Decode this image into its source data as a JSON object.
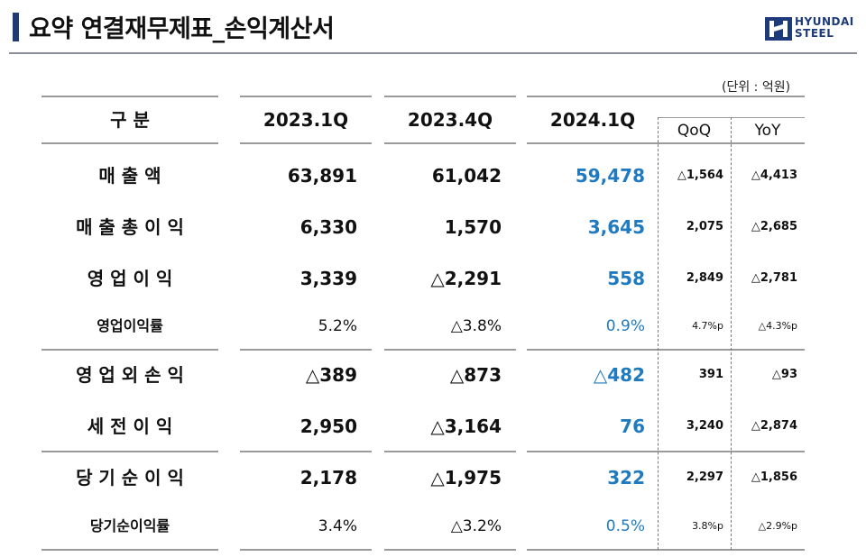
{
  "title": "요약 연결재무제표_손익계산서",
  "logo": {
    "line1": "HYUNDAI",
    "line2": "STEEL"
  },
  "unit": "(단위 : 억원)",
  "header": {
    "category": "구 분",
    "col1": "2023.1Q",
    "col2": "2023.4Q",
    "col3": "2024.1Q",
    "qoq": "QoQ",
    "yoy": "YoY"
  },
  "rows": [
    {
      "label": "매   출   액",
      "v1": "63,891",
      "v2": "61,042",
      "v3": "59,478",
      "qoq": "△1,564",
      "yoy": "△4,413"
    },
    {
      "label": "매 출 총 이 익",
      "v1": "6,330",
      "v2": "1,570",
      "v3": "3,645",
      "qoq": "2,075",
      "yoy": "△2,685"
    },
    {
      "label": "영 업 이 익",
      "v1": "3,339",
      "v2": "△2,291",
      "v3": "558",
      "qoq": "2,849",
      "yoy": "△2,781"
    },
    {
      "label": "영업이익률",
      "v1": "5.2%",
      "v2": "△3.8%",
      "v3": "0.9%",
      "qoq": "4.7%p",
      "yoy": "△4.3%p"
    },
    {
      "label": "영 업 외 손 익",
      "v1": "△389",
      "v2": "△873",
      "v3": "△482",
      "qoq": "391",
      "yoy": "△93"
    },
    {
      "label": "세 전 이 익",
      "v1": "2,950",
      "v2": "△3,164",
      "v3": "76",
      "qoq": "3,240",
      "yoy": "△2,874"
    },
    {
      "label": "당 기 순 이 익",
      "v1": "2,178",
      "v2": "△1,975",
      "v3": "322",
      "qoq": "2,297",
      "yoy": "△1,856"
    },
    {
      "label": "당기순이익률",
      "v1": "3.4%",
      "v2": "△3.2%",
      "v3": "0.5%",
      "qoq": "3.8%p",
      "yoy": "△2.9%p"
    }
  ]
}
